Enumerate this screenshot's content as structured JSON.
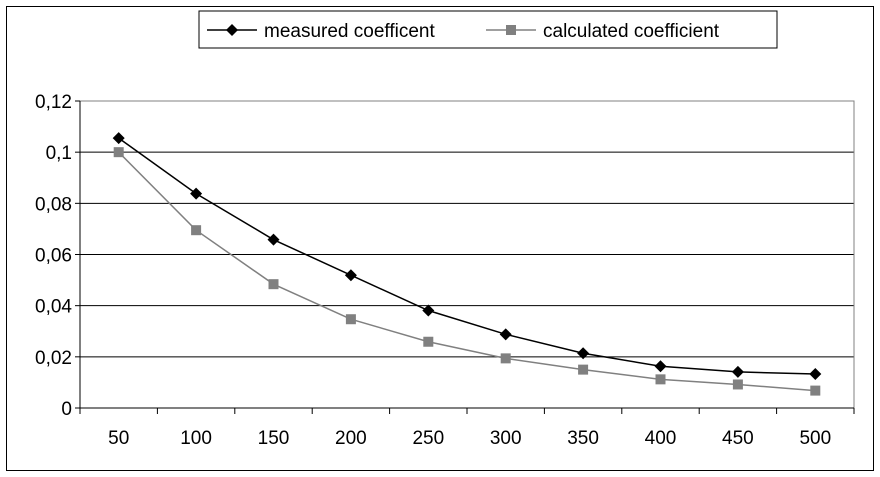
{
  "chart_data": {
    "type": "line",
    "categories": [
      "50",
      "100",
      "150",
      "200",
      "250",
      "300",
      "350",
      "400",
      "450",
      "500"
    ],
    "series": [
      {
        "name": "measured coefficent",
        "color": "#000000",
        "marker": "diamond",
        "values": [
          0.1055,
          0.0838,
          0.0658,
          0.0519,
          0.0381,
          0.0288,
          0.0214,
          0.0163,
          0.0141,
          0.0133
        ]
      },
      {
        "name": "calculated coefficient",
        "color": "#808080",
        "marker": "square",
        "values": [
          0.1,
          0.0695,
          0.0484,
          0.0347,
          0.0259,
          0.0194,
          0.015,
          0.0112,
          0.0092,
          0.0068
        ]
      }
    ],
    "y_ticks": [
      "0",
      "0,02",
      "0,04",
      "0,06",
      "0,08",
      "0,1",
      "0,12"
    ],
    "ylim": [
      0,
      0.12
    ],
    "grid": "horizontal",
    "legend_position": "top"
  }
}
